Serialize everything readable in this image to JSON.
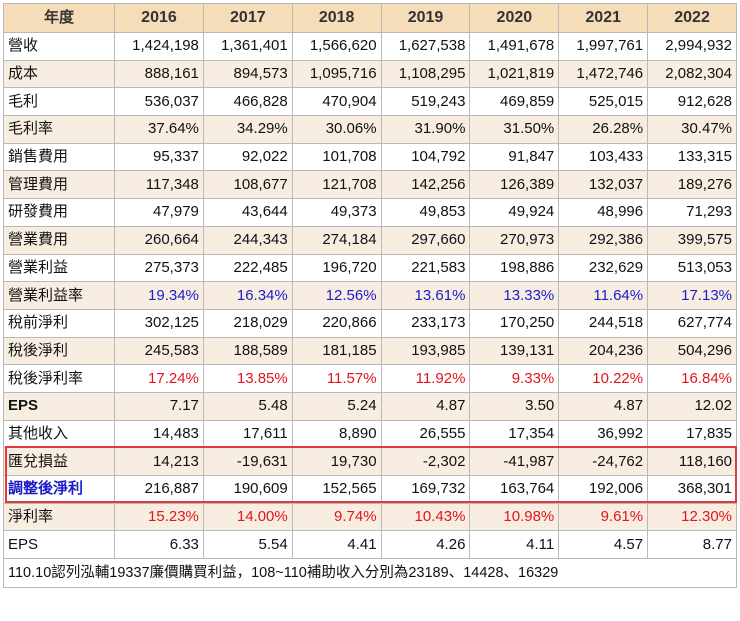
{
  "header": {
    "label": "年度",
    "years": [
      "2016",
      "2017",
      "2018",
      "2019",
      "2020",
      "2021",
      "2022"
    ]
  },
  "rows": [
    {
      "label": "營收",
      "values": [
        "1,424,198",
        "1,361,401",
        "1,566,620",
        "1,627,538",
        "1,491,678",
        "1,997,761",
        "2,994,932"
      ]
    },
    {
      "label": "成本",
      "values": [
        "888,161",
        "894,573",
        "1,095,716",
        "1,108,295",
        "1,021,819",
        "1,472,746",
        "2,082,304"
      ]
    },
    {
      "label": "毛利",
      "values": [
        "536,037",
        "466,828",
        "470,904",
        "519,243",
        "469,859",
        "525,015",
        "912,628"
      ]
    },
    {
      "label": "毛利率",
      "values": [
        "37.64%",
        "34.29%",
        "30.06%",
        "31.90%",
        "31.50%",
        "26.28%",
        "30.47%"
      ]
    },
    {
      "label": "銷售費用",
      "values": [
        "95,337",
        "92,022",
        "101,708",
        "104,792",
        "91,847",
        "103,433",
        "133,315"
      ]
    },
    {
      "label": "管理費用",
      "values": [
        "117,348",
        "108,677",
        "121,708",
        "142,256",
        "126,389",
        "132,037",
        "189,276"
      ]
    },
    {
      "label": "研發費用",
      "values": [
        "47,979",
        "43,644",
        "49,373",
        "49,853",
        "49,924",
        "48,996",
        "71,293"
      ]
    },
    {
      "label": "營業費用",
      "values": [
        "260,664",
        "244,343",
        "274,184",
        "297,660",
        "270,973",
        "292,386",
        "399,575"
      ]
    },
    {
      "label": "營業利益",
      "values": [
        "275,373",
        "222,485",
        "196,720",
        "221,583",
        "198,886",
        "232,629",
        "513,053"
      ]
    },
    {
      "label": "營業利益率",
      "values": [
        "19.34%",
        "16.34%",
        "12.56%",
        "13.61%",
        "13.33%",
        "11.64%",
        "17.13%"
      ]
    },
    {
      "label": "稅前淨利",
      "values": [
        "302,125",
        "218,029",
        "220,866",
        "233,173",
        "170,250",
        "244,518",
        "627,774"
      ]
    },
    {
      "label": "稅後淨利",
      "values": [
        "245,583",
        "188,589",
        "181,185",
        "193,985",
        "139,131",
        "204,236",
        "504,296"
      ]
    },
    {
      "label": "稅後淨利率",
      "values": [
        "17.24%",
        "13.85%",
        "11.57%",
        "11.92%",
        "9.33%",
        "10.22%",
        "16.84%"
      ]
    },
    {
      "label": "EPS",
      "values": [
        "7.17",
        "5.48",
        "5.24",
        "4.87",
        "3.50",
        "4.87",
        "12.02"
      ]
    },
    {
      "label": "其他收入",
      "values": [
        "14,483",
        "17,611",
        "8,890",
        "26,555",
        "17,354",
        "36,992",
        "17,835"
      ]
    },
    {
      "label": "匯兌損益",
      "values": [
        "14,213",
        "-19,631",
        "19,730",
        "-2,302",
        "-41,987",
        "-24,762",
        "118,160"
      ]
    },
    {
      "label": "調整後淨利",
      "values": [
        "216,887",
        "190,609",
        "152,565",
        "169,732",
        "163,764",
        "192,006",
        "368,301"
      ]
    },
    {
      "label": "淨利率",
      "values": [
        "15.23%",
        "14.00%",
        "9.74%",
        "10.43%",
        "10.98%",
        "9.61%",
        "12.30%"
      ]
    },
    {
      "label": "EPS",
      "values": [
        "6.33",
        "5.54",
        "4.41",
        "4.26",
        "4.11",
        "4.57",
        "8.77"
      ]
    }
  ],
  "note": "110.10認列泓輔19337廉價購買利益，108~110補助收入分別為23189、14428、16329",
  "colors": {
    "header_bg": "#f4ddb8",
    "shaded_row_bg": "#f7ede0",
    "blue_text": "#1c1ccc",
    "red_text": "#e0161c",
    "highlight_border": "#e03a3a"
  }
}
